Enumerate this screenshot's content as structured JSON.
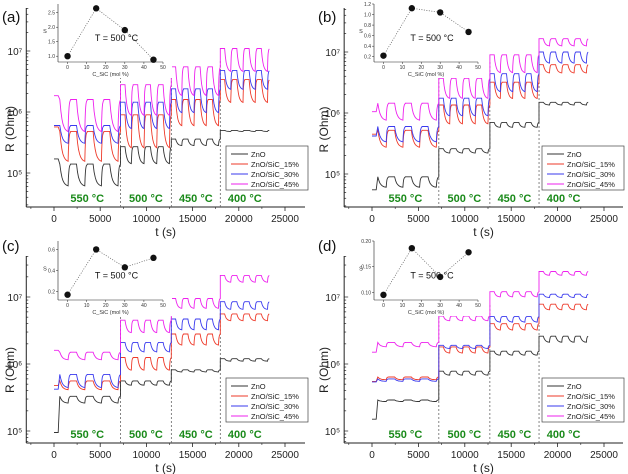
{
  "chart_data": [
    {
      "type": "line",
      "panel": "(a)",
      "xlabel": "t (s)",
      "ylabel": "R (Ohm)",
      "yscale": "log",
      "xlim": [
        -3000,
        28000
      ],
      "ylim": [
        30000,
        40000000
      ],
      "x_ticks": [
        0,
        5000,
        10000,
        15000,
        20000,
        25000
      ],
      "y_ticks": [
        {
          "value": 100000,
          "label": "10⁵"
        },
        {
          "value": 1000000,
          "label": "10⁶"
        },
        {
          "value": 10000000,
          "label": "10⁷"
        }
      ],
      "segment_boundaries": [
        7200,
        12700,
        18000
      ],
      "temperature_labels": [
        "550 °C",
        "500 °C",
        "450 °C",
        "400 °C"
      ],
      "legend": [
        "ZnO",
        "ZnO/SiC_15%",
        "ZnO/SiC_30%",
        "ZnO/SiC_45%"
      ],
      "legend_position": "right",
      "series": [
        {
          "name": "ZnO",
          "color": "#333333",
          "segments": [
            {
              "base": 140000,
              "low": 60000,
              "start": 170000
            },
            {
              "base": 270000,
              "low": 140000
            },
            {
              "base": 360000,
              "low": 280000
            },
            {
              "base": 500000,
              "low": 480000
            }
          ]
        },
        {
          "name": "ZnO/SiC_15%",
          "color": "#ee3a2a",
          "segments": [
            {
              "base": 480000,
              "low": 150000,
              "start": 570000
            },
            {
              "base": 900000,
              "low": 250000
            },
            {
              "base": 1600000,
              "low": 580000
            },
            {
              "base": 3400000,
              "low": 1400000
            }
          ]
        },
        {
          "name": "ZnO/SiC_30%",
          "color": "#3a3aee",
          "segments": [
            {
              "base": 600000,
              "low": 300000,
              "start": 600000
            },
            {
              "base": 1450000,
              "low": 520000
            },
            {
              "base": 2400000,
              "low": 950000
            },
            {
              "base": 4800000,
              "low": 2300000
            }
          ]
        },
        {
          "name": "ZnO/SiC_45%",
          "color": "#ee22ee",
          "segments": [
            {
              "base": 1600000,
              "low": 460000,
              "start": 1850000
            },
            {
              "base": 2800000,
              "low": 850000
            },
            {
              "base": 5500000,
              "low": 1800000
            },
            {
              "base": 11000000,
              "low": 4500000
            }
          ]
        }
      ],
      "inset": {
        "xlabel": "C_SiC (mol %)",
        "ylabel": "S",
        "annotation": "T = 500 °C",
        "xlim": [
          -5,
          50
        ],
        "ylim": [
          0.8,
          2.8
        ],
        "x_ticks": [
          0,
          10,
          20,
          30,
          40,
          50
        ],
        "y_ticks": [
          1.0,
          1.5,
          2.0,
          2.5
        ],
        "points": [
          {
            "x": 0,
            "y": 1.0
          },
          {
            "x": 15,
            "y": 2.65
          },
          {
            "x": 30,
            "y": 1.9
          },
          {
            "x": 45,
            "y": 0.88
          }
        ]
      }
    },
    {
      "type": "line",
      "panel": "(b)",
      "xlabel": "t (s)",
      "ylabel": "R (Ohm)",
      "yscale": "log",
      "xlim": [
        -3000,
        28000
      ],
      "ylim": [
        30000,
        40000000
      ],
      "x_ticks": [
        0,
        5000,
        10000,
        15000,
        20000,
        25000
      ],
      "y_ticks": [
        {
          "value": 100000,
          "label": "10⁵"
        },
        {
          "value": 1000000,
          "label": "10⁶"
        },
        {
          "value": 10000000,
          "label": "10⁷"
        }
      ],
      "segment_boundaries": [
        7200,
        12700,
        18000
      ],
      "temperature_labels": [
        "550 °C",
        "500 °C",
        "450 °C",
        "400 °C"
      ],
      "legend": [
        "ZnO",
        "ZnO/SiC_15%",
        "ZnO/SiC_30%",
        "ZnO/SiC_45%"
      ],
      "legend_position": "right",
      "series": [
        {
          "name": "ZnO",
          "color": "#333333",
          "segments": [
            {
              "base": 90000,
              "low": 60000,
              "start": 55000
            },
            {
              "base": 260000,
              "low": 220000
            },
            {
              "base": 700000,
              "low": 580000
            },
            {
              "base": 1500000,
              "low": 1350000
            }
          ]
        },
        {
          "name": "ZnO/SiC_15%",
          "color": "#ee3a2a",
          "segments": [
            {
              "base": 520000,
              "low": 270000,
              "start": 450000
            },
            {
              "base": 1350000,
              "low": 650000
            },
            {
              "base": 3200000,
              "low": 1700000
            },
            {
              "base": 6200000,
              "low": 4500000
            }
          ]
        },
        {
          "name": "ZnO/SiC_30%",
          "color": "#3a3aee",
          "segments": [
            {
              "base": 600000,
              "low": 330000,
              "start": 420000
            },
            {
              "base": 1750000,
              "low": 880000
            },
            {
              "base": 4400000,
              "low": 2200000
            },
            {
              "base": 10000000,
              "low": 6500000
            }
          ]
        },
        {
          "name": "ZnO/SiC_45%",
          "color": "#ee22ee",
          "segments": [
            {
              "base": 1450000,
              "low": 750000,
              "start": 1050000
            },
            {
              "base": 3700000,
              "low": 1700000
            },
            {
              "base": 9000000,
              "low": 4500000
            },
            {
              "base": 16500000,
              "low": 12500000
            }
          ]
        }
      ],
      "inset": {
        "xlabel": "C_SiC (mol %)",
        "ylabel": "S",
        "annotation": "T = 500 °C",
        "xlim": [
          -5,
          50
        ],
        "ylim": [
          0.1,
          1.2
        ],
        "x_ticks": [
          0,
          10,
          20,
          30,
          40,
          50
        ],
        "y_ticks": [
          0.2,
          0.4,
          0.6,
          0.8,
          1.0,
          1.2
        ],
        "points": [
          {
            "x": 0,
            "y": 0.22
          },
          {
            "x": 15,
            "y": 1.12
          },
          {
            "x": 30,
            "y": 1.04
          },
          {
            "x": 45,
            "y": 0.67
          }
        ]
      }
    },
    {
      "type": "line",
      "panel": "(c)",
      "xlabel": "t (s)",
      "ylabel": "R (Ohm)",
      "yscale": "log",
      "xlim": [
        -3000,
        28000
      ],
      "ylim": [
        80000,
        40000000
      ],
      "x_ticks": [
        0,
        5000,
        10000,
        15000,
        20000,
        25000
      ],
      "y_ticks": [
        {
          "value": 100000,
          "label": "10⁵"
        },
        {
          "value": 1000000,
          "label": "10⁶"
        },
        {
          "value": 10000000,
          "label": "10⁷"
        }
      ],
      "segment_boundaries": [
        7200,
        12700,
        18000
      ],
      "temperature_labels": [
        "550 °C",
        "500 °C",
        "450 °C",
        "400 °C"
      ],
      "legend": [
        "ZnO",
        "ZnO/SiC_15%",
        "ZnO/SiC_30%",
        "ZnO/SiC_45%"
      ],
      "legend_position": "right",
      "series": [
        {
          "name": "ZnO",
          "color": "#333333",
          "segments": [
            {
              "base": 330000,
              "low": 260000,
              "start": 95000
            },
            {
              "base": 560000,
              "low": 480000
            },
            {
              "base": 820000,
              "low": 760000
            },
            {
              "base": 1200000,
              "low": 1100000
            }
          ]
        },
        {
          "name": "ZnO/SiC_15%",
          "color": "#ee3a2a",
          "segments": [
            {
              "base": 560000,
              "low": 410000,
              "start": 480000
            },
            {
              "base": 1250000,
              "low": 800000
            },
            {
              "base": 2800000,
              "low": 1900000
            },
            {
              "base": 5600000,
              "low": 4400000
            }
          ]
        },
        {
          "name": "ZnO/SiC_30%",
          "color": "#3a3aee",
          "segments": [
            {
              "base": 700000,
              "low": 440000,
              "start": 420000
            },
            {
              "base": 2100000,
              "low": 1500000
            },
            {
              "base": 4700000,
              "low": 3200000
            },
            {
              "base": 8500000,
              "low": 6500000
            }
          ]
        },
        {
          "name": "ZnO/SiC_45%",
          "color": "#ee22ee",
          "segments": [
            {
              "base": 1500000,
              "low": 1150000,
              "start": 1600000
            },
            {
              "base": 4500000,
              "low": 2900000
            },
            {
              "base": 9500000,
              "low": 6700000
            },
            {
              "base": 21000000,
              "low": 16500000
            }
          ]
        }
      ],
      "inset": {
        "xlabel": "C_SiC (mol %)",
        "ylabel": "S",
        "annotation": "T = 500 °C",
        "xlim": [
          -5,
          50
        ],
        "ylim": [
          0.12,
          0.68
        ],
        "x_ticks": [
          0,
          10,
          20,
          30,
          40,
          50
        ],
        "y_ticks": [
          0.2,
          0.4,
          0.6
        ],
        "points": [
          {
            "x": 0,
            "y": 0.17
          },
          {
            "x": 15,
            "y": 0.6
          },
          {
            "x": 30,
            "y": 0.43
          },
          {
            "x": 45,
            "y": 0.52
          }
        ]
      }
    },
    {
      "type": "line",
      "panel": "(d)",
      "xlabel": "t (s)",
      "ylabel": "R (Ohm)",
      "yscale": "log",
      "xlim": [
        -3000,
        28000
      ],
      "ylim": [
        80000,
        40000000
      ],
      "x_ticks": [
        0,
        5000,
        10000,
        15000,
        20000,
        25000
      ],
      "y_ticks": [
        {
          "value": 100000,
          "label": "10⁵"
        },
        {
          "value": 1000000,
          "label": "10⁶"
        },
        {
          "value": 10000000,
          "label": "10⁷"
        }
      ],
      "segment_boundaries": [
        7200,
        12700,
        18000
      ],
      "temperature_labels": [
        "550 °C",
        "500 °C",
        "450 °C",
        "400 °C"
      ],
      "legend": [
        "ZnO",
        "ZnO/SiC_15%",
        "ZnO/SiC_30%",
        "ZnO/SiC_45%"
      ],
      "legend_position": "right",
      "series": [
        {
          "name": "ZnO",
          "color": "#333333",
          "segments": [
            {
              "base": 290000,
              "low": 275000,
              "start": 150000
            },
            {
              "base": 780000,
              "low": 680000
            },
            {
              "base": 1550000,
              "low": 1350000
            },
            {
              "base": 2600000,
              "low": 2100000
            }
          ]
        },
        {
          "name": "ZnO/SiC_15%",
          "color": "#ee3a2a",
          "segments": [
            {
              "base": 640000,
              "low": 580000,
              "start": 550000
            },
            {
              "base": 1800000,
              "low": 1450000
            },
            {
              "base": 4000000,
              "low": 3200000
            },
            {
              "base": 7800000,
              "low": 6400000
            }
          ]
        },
        {
          "name": "ZnO/SiC_30%",
          "color": "#3a3aee",
          "segments": [
            {
              "base": 600000,
              "low": 550000,
              "start": 540000
            },
            {
              "base": 1900000,
              "low": 1700000
            },
            {
              "base": 5100000,
              "low": 4200000
            },
            {
              "base": 11000000,
              "low": 9800000
            }
          ]
        },
        {
          "name": "ZnO/SiC_45%",
          "color": "#ee22ee",
          "segments": [
            {
              "base": 2100000,
              "low": 1800000,
              "start": 1500000
            },
            {
              "base": 5200000,
              "low": 4400000
            },
            {
              "base": 12000000,
              "low": 10000000
            },
            {
              "base": 24000000,
              "low": 21000000
            }
          ]
        }
      ],
      "inset": {
        "xlabel": "C_SiC (mol %)",
        "ylabel": "S",
        "annotation": "T = 500 °C",
        "xlim": [
          -5,
          50
        ],
        "ylim": [
          0.085,
          0.2
        ],
        "x_ticks": [
          0,
          10,
          20,
          30,
          40,
          50
        ],
        "y_ticks": [
          0.1,
          0.15,
          0.2
        ],
        "points": [
          {
            "x": 0,
            "y": 0.095
          },
          {
            "x": 15,
            "y": 0.186
          },
          {
            "x": 30,
            "y": 0.13
          },
          {
            "x": 45,
            "y": 0.178
          }
        ]
      }
    }
  ]
}
